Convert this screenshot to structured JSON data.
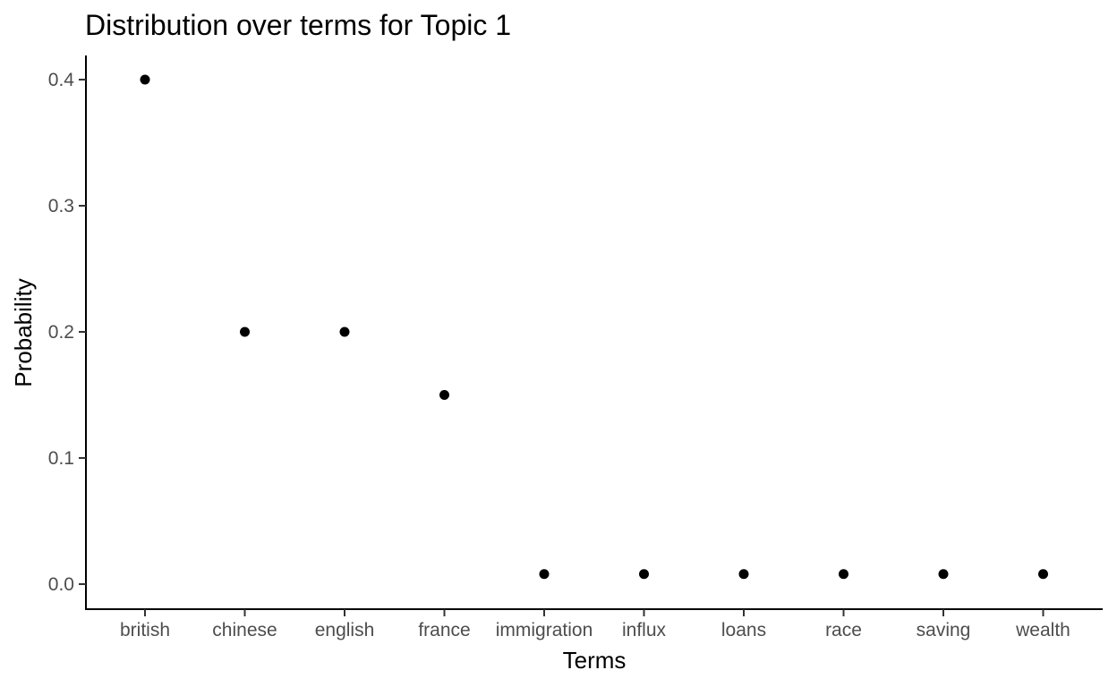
{
  "chart_data": {
    "type": "scatter",
    "title": "Distribution over terms for Topic 1",
    "xlabel": "Terms",
    "ylabel": "Probability",
    "categories": [
      "british",
      "chinese",
      "english",
      "france",
      "immigration",
      "influx",
      "loans",
      "race",
      "saving",
      "wealth"
    ],
    "values": [
      0.4,
      0.2,
      0.2,
      0.15,
      0.008,
      0.008,
      0.008,
      0.008,
      0.008,
      0.008
    ],
    "yticks": [
      "0.0",
      "0.1",
      "0.2",
      "0.3",
      "0.4"
    ],
    "ytick_values": [
      0.0,
      0.1,
      0.2,
      0.3,
      0.4
    ],
    "ylim": [
      -0.02,
      0.42
    ],
    "grid": false,
    "point_color": "#000000"
  }
}
